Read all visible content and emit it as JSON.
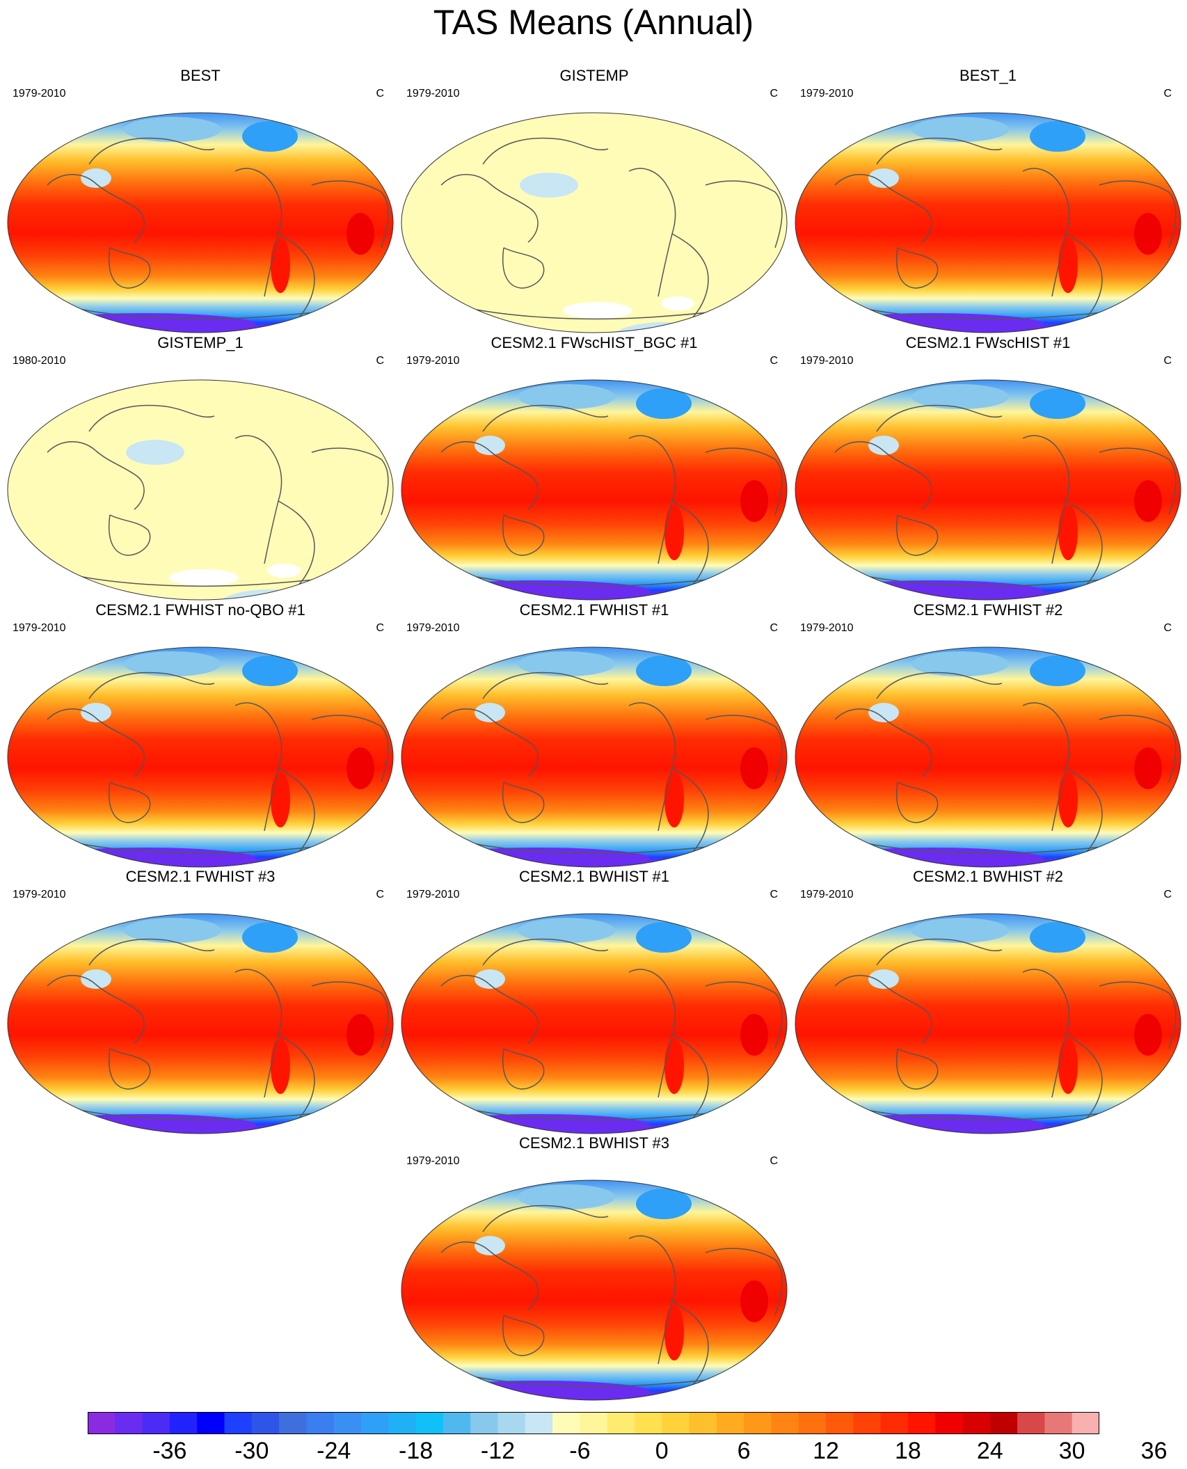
{
  "title": "TAS Means (Annual)",
  "units": "C",
  "panels": [
    {
      "title": "BEST",
      "years": "1979-2010",
      "style": "model"
    },
    {
      "title": "GISTEMP",
      "years": "1979-2010",
      "style": "anomaly"
    },
    {
      "title": "BEST_1",
      "years": "1979-2010",
      "style": "model"
    },
    {
      "title": "GISTEMP_1",
      "years": "1980-2010",
      "style": "anomaly"
    },
    {
      "title": "CESM2.1 FWscHIST_BGC #1",
      "years": "1979-2010",
      "style": "model"
    },
    {
      "title": "CESM2.1 FWscHIST #1",
      "years": "1979-2010",
      "style": "model"
    },
    {
      "title": "CESM2.1 FWHIST no-QBO #1",
      "years": "1979-2010",
      "style": "model"
    },
    {
      "title": "CESM2.1 FWHIST #1",
      "years": "1979-2010",
      "style": "model"
    },
    {
      "title": "CESM2.1 FWHIST #2",
      "years": "1979-2010",
      "style": "model"
    },
    {
      "title": "CESM2.1 FWHIST #3",
      "years": "1979-2010",
      "style": "model"
    },
    {
      "title": "CESM2.1 BWHIST #1",
      "years": "1979-2010",
      "style": "model"
    },
    {
      "title": "CESM2.1 BWHIST #2",
      "years": "1979-2010",
      "style": "model"
    },
    {
      "title": "CESM2.1 BWHIST #3",
      "years": "1979-2010",
      "style": "model"
    }
  ],
  "colorbar": {
    "colors": [
      "#8a2be2",
      "#6a2cf0",
      "#4b2cf6",
      "#2222ff",
      "#0000ff",
      "#1e40ff",
      "#2f55e8",
      "#3f6fdc",
      "#3a7ef0",
      "#3a8ff5",
      "#2ea0f7",
      "#1fb0f5",
      "#10c0f8",
      "#4fb8ef",
      "#88c8ec",
      "#a8d8ef",
      "#c8e6f4",
      "#fffcb8",
      "#fff59a",
      "#ffeb70",
      "#ffe050",
      "#ffd23c",
      "#ffc02d",
      "#ffab20",
      "#ff9818",
      "#ff8412",
      "#ff700e",
      "#ff5a0a",
      "#ff4206",
      "#ff2c03",
      "#ff1400",
      "#f00000",
      "#d80000",
      "#c00000",
      "#d84848",
      "#e87878",
      "#f8b0b0"
    ],
    "tick_labels": [
      "-36",
      "-30",
      "-24",
      "-18",
      "-12",
      "-6",
      "0",
      "6",
      "12",
      "18",
      "24",
      "30",
      "36"
    ]
  }
}
